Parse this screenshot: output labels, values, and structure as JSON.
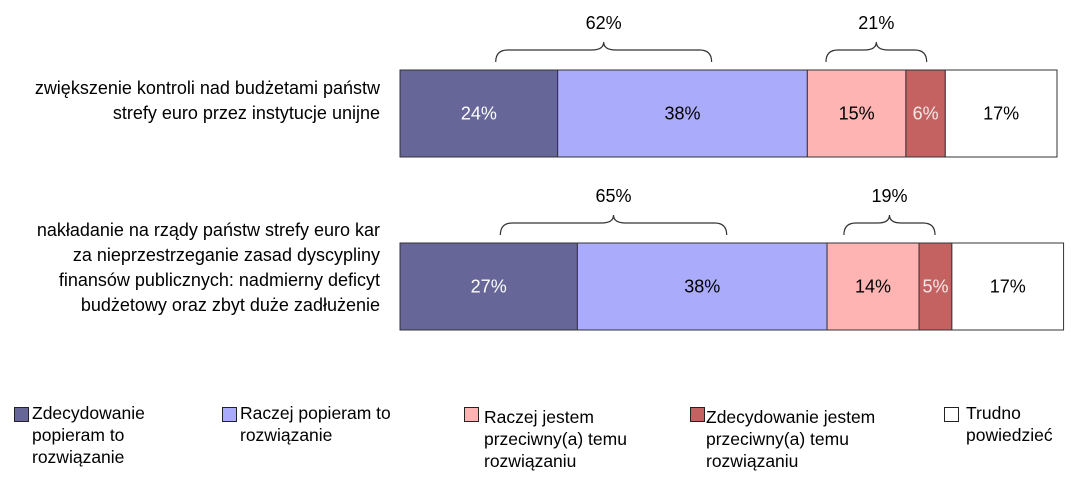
{
  "chart_data": {
    "type": "stacked-bar-horizontal",
    "categories": [
      "zwiększenie kontroli nad budżetami państw strefy euro przez instytucje unijne",
      "nakładanie na rządy państw strefy euro kar za nieprzestrzeganie zasad dyscypliny finansów publicznych: nadmierny deficyt budżetowy oraz zbyt duże zadłużenie"
    ],
    "xlim": [
      0,
      100
    ],
    "series": [
      {
        "name": "Zdecydowanie popieram to rozwiązanie",
        "color": "#666699",
        "values": [
          24,
          27
        ],
        "value_labels": [
          "24%",
          "27%"
        ]
      },
      {
        "name": "Raczej popieram to rozwiązanie",
        "color": "#aaabfb",
        "values": [
          38,
          38
        ],
        "value_labels": [
          "38%",
          "38%"
        ]
      },
      {
        "name": "Raczej jestem przeciwny(a) temu rozwiązaniu",
        "color": "#ffb4b4",
        "values": [
          15,
          14
        ],
        "value_labels": [
          "15%",
          "14%"
        ]
      },
      {
        "name": "Zdecydowanie jestem przeciwny(a) temu rozwiązaniu",
        "color": "#c46262",
        "values": [
          6,
          5
        ],
        "value_labels": [
          "6%",
          "5%"
        ]
      },
      {
        "name": "Trudno powiedzieć",
        "color": "#ffffff",
        "values": [
          17,
          17
        ],
        "value_labels": [
          "17%",
          "17%"
        ]
      }
    ],
    "brace_values": [
      [
        62,
        21
      ],
      [
        65,
        19
      ]
    ],
    "brace_labels": [
      [
        "62%",
        "21%"
      ],
      [
        "65%",
        "19%"
      ]
    ]
  }
}
